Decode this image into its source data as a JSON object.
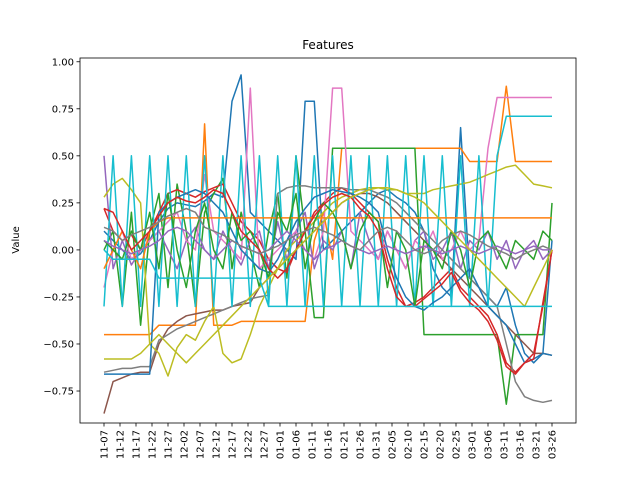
{
  "chart_data": {
    "type": "line",
    "title": "Features",
    "xlabel": "",
    "ylabel": "Value",
    "ylim": [
      -0.92,
      1.02
    ],
    "yticks": [
      -0.75,
      -0.5,
      -0.25,
      0.0,
      0.25,
      0.5,
      0.75,
      1.0
    ],
    "ytick_labels": [
      "−0.75",
      "−0.50",
      "−0.25",
      "0.00",
      "0.25",
      "0.50",
      "0.75",
      "1.00"
    ],
    "x_tick_labels": [
      "11-07",
      "11-12",
      "11-17",
      "11-22",
      "11-27",
      "12-02",
      "12-07",
      "12-12",
      "12-17",
      "12-22",
      "12-27",
      "01-01",
      "01-06",
      "01-11",
      "01-16",
      "01-21",
      "01-26",
      "01-31",
      "02-05",
      "02-10",
      "02-15",
      "02-20",
      "02-25",
      "03-01",
      "03-06",
      "03-11",
      "03-16",
      "03-21",
      "03-26"
    ],
    "grid": false,
    "series": [
      {
        "color": "#1f77b4",
        "values": [
          0.1,
          0.05,
          0.0,
          -0.05,
          -0.02,
          0.05,
          0.15,
          0.22,
          0.25,
          0.24,
          0.23,
          0.26,
          0.3,
          0.28,
          0.79,
          0.93,
          0.2,
          0.15,
          0.1,
          0.05,
          0.0,
          -0.05,
          0.79,
          0.79,
          0.0,
          0.05,
          0.1,
          0.15,
          0.2,
          0.25,
          0.3,
          0.32,
          0.28,
          0.25,
          0.2,
          0.1,
          -0.1,
          -0.2,
          -0.25,
          0.65,
          -0.15,
          -0.2,
          -0.25,
          -0.3,
          -0.2,
          -0.4,
          -0.55,
          -0.6,
          -0.55,
          0.05
        ]
      },
      {
        "color": "#ff7f0e",
        "values": [
          -0.45,
          -0.45,
          -0.45,
          -0.45,
          -0.45,
          -0.45,
          -0.4,
          -0.4,
          -0.4,
          -0.4,
          -0.4,
          0.67,
          -0.4,
          -0.4,
          -0.4,
          -0.38,
          -0.38,
          -0.38,
          -0.38,
          -0.38,
          -0.38,
          -0.38,
          -0.38,
          0.05,
          0.2,
          -0.05,
          0.54,
          0.54,
          0.54,
          0.54,
          0.54,
          0.54,
          0.54,
          0.54,
          0.54,
          0.54,
          0.54,
          0.54,
          0.54,
          0.54,
          0.47,
          0.47,
          0.47,
          0.47,
          0.87,
          0.47,
          0.47,
          0.47,
          0.47,
          0.47
        ]
      },
      {
        "color": "#2ca02c",
        "values": [
          0.0,
          0.1,
          -0.3,
          0.2,
          -0.4,
          0.1,
          0.3,
          -0.2,
          0.35,
          0.1,
          -0.3,
          0.2,
          0.3,
          0.38,
          -0.1,
          0.2,
          0.0,
          -0.2,
          0.1,
          0.3,
          -0.15,
          0.5,
          0.1,
          -0.36,
          -0.36,
          0.54,
          0.54,
          0.54,
          0.54,
          0.54,
          0.54,
          0.54,
          0.54,
          0.54,
          0.54,
          -0.45,
          -0.45,
          -0.45,
          -0.45,
          -0.45,
          -0.45,
          -0.45,
          -0.45,
          -0.45,
          -0.82,
          -0.45,
          -0.45,
          -0.45,
          -0.45,
          0.25
        ]
      },
      {
        "color": "#d62728",
        "values": [
          0.22,
          0.1,
          0.05,
          0.08,
          0.0,
          0.1,
          0.2,
          0.3,
          0.32,
          0.3,
          0.28,
          0.31,
          0.33,
          0.35,
          0.25,
          0.15,
          0.1,
          0.05,
          -0.05,
          -0.1,
          -0.12,
          0.0,
          0.1,
          0.2,
          0.25,
          0.3,
          0.33,
          0.3,
          0.25,
          0.2,
          0.15,
          -0.05,
          -0.2,
          -0.3,
          -0.28,
          -0.25,
          -0.2,
          -0.15,
          -0.1,
          -0.2,
          -0.25,
          -0.3,
          -0.35,
          -0.45,
          -0.6,
          -0.65,
          -0.6,
          -0.55,
          -0.3,
          0.0
        ]
      },
      {
        "color": "#9467bd",
        "values": [
          0.5,
          -0.1,
          0.05,
          -0.08,
          0.0,
          0.05,
          0.1,
          0.0,
          -0.1,
          0.05,
          0.12,
          0.0,
          -0.05,
          0.1,
          0.0,
          -0.08,
          0.05,
          0.1,
          -0.1,
          0.15,
          -0.05,
          0.1,
          0.2,
          -0.1,
          0.05,
          0.0,
          0.1,
          -0.1,
          0.2,
          0.05,
          -0.05,
          0.1,
          0.0,
          -0.1,
          0.05,
          0.1,
          -0.05,
          0.0,
          0.1,
          -0.1,
          0.05,
          0.0,
          0.1,
          -0.05,
          0.05,
          -0.1,
          0.0,
          0.05,
          -0.05,
          0.0
        ]
      },
      {
        "color": "#8c564b",
        "values": [
          -0.87,
          -0.7,
          -0.68,
          -0.66,
          -0.65,
          -0.65,
          -0.5,
          -0.42,
          -0.38,
          -0.35,
          -0.34,
          -0.33,
          -0.32,
          -0.32,
          -0.3,
          -0.29,
          -0.28,
          -0.2,
          -0.15,
          -0.1,
          -0.05,
          0.0,
          0.05,
          0.1,
          0.15,
          0.2,
          0.25,
          0.28,
          0.3,
          0.3,
          0.28,
          0.25,
          0.2,
          0.15,
          0.1,
          0.05,
          0.0,
          -0.05,
          -0.1,
          -0.15,
          -0.2,
          -0.25,
          -0.3,
          -0.35,
          -0.4,
          -0.45,
          -0.5,
          -0.55,
          -0.55,
          -0.56
        ]
      },
      {
        "color": "#e377c2",
        "values": [
          -0.2,
          0.0,
          0.1,
          -0.05,
          0.0,
          0.05,
          0.1,
          0.15,
          0.2,
          0.05,
          0.0,
          0.4,
          0.1,
          0.05,
          0.0,
          -0.05,
          0.86,
          -0.1,
          -0.05,
          0.0,
          0.05,
          0.1,
          0.0,
          -0.05,
          0.1,
          0.86,
          0.86,
          0.1,
          0.05,
          0.0,
          -0.05,
          0.1,
          0.0,
          -0.1,
          0.05,
          0.0,
          0.1,
          -0.05,
          0.0,
          0.1,
          0.0,
          0.05,
          0.54,
          0.81,
          0.81,
          0.81,
          0.81,
          0.81,
          0.81,
          0.81
        ]
      },
      {
        "color": "#7f7f7f",
        "values": [
          -0.65,
          -0.64,
          -0.63,
          -0.63,
          -0.62,
          -0.62,
          -0.48,
          -0.45,
          -0.42,
          -0.4,
          -0.38,
          -0.36,
          -0.34,
          -0.32,
          -0.3,
          -0.28,
          -0.26,
          -0.25,
          -0.24,
          0.3,
          0.33,
          0.34,
          0.34,
          0.33,
          0.33,
          0.33,
          0.33,
          0.32,
          0.32,
          0.32,
          0.3,
          0.28,
          0.25,
          0.2,
          0.15,
          0.1,
          0.05,
          0.0,
          -0.05,
          -0.1,
          -0.15,
          -0.2,
          -0.25,
          -0.3,
          -0.5,
          -0.7,
          -0.78,
          -0.8,
          -0.81,
          -0.8
        ]
      },
      {
        "color": "#bcbd22",
        "values": [
          0.28,
          0.35,
          0.38,
          0.32,
          0.25,
          -0.5,
          -0.55,
          -0.67,
          -0.52,
          -0.45,
          -0.48,
          -0.38,
          -0.3,
          -0.55,
          -0.6,
          -0.58,
          -0.45,
          -0.3,
          -0.2,
          -0.1,
          0.0,
          0.05,
          0.1,
          0.15,
          0.2,
          0.25,
          0.28,
          0.3,
          0.32,
          0.33,
          0.33,
          0.32,
          0.32,
          0.3,
          0.3,
          0.3,
          0.32,
          0.33,
          0.34,
          0.35,
          0.36,
          0.38,
          0.4,
          0.42,
          0.44,
          0.45,
          0.4,
          0.35,
          0.34,
          0.33
        ]
      },
      {
        "color": "#17becf",
        "values": [
          -0.3,
          0.5,
          -0.3,
          0.5,
          -0.3,
          0.5,
          -0.3,
          0.5,
          -0.3,
          0.5,
          -0.3,
          0.5,
          -0.3,
          0.5,
          -0.3,
          0.5,
          -0.3,
          0.5,
          -0.3,
          0.5,
          -0.3,
          0.5,
          -0.3,
          0.5,
          -0.3,
          0.5,
          -0.3,
          0.5,
          -0.3,
          0.5,
          -0.3,
          0.5,
          -0.3,
          0.5,
          -0.3,
          0.5,
          -0.3,
          0.5,
          -0.3,
          0.5,
          -0.3,
          0.5,
          -0.3,
          0.5,
          0.71,
          0.71,
          0.71,
          0.71,
          0.71,
          0.71
        ]
      },
      {
        "color": "#1f77b4",
        "values": [
          -0.66,
          -0.66,
          -0.66,
          -0.66,
          -0.66,
          -0.66,
          0.2,
          0.25,
          0.28,
          0.3,
          0.32,
          0.3,
          0.25,
          0.2,
          0.1,
          0.0,
          -0.05,
          -0.1,
          -0.12,
          -0.05,
          0.05,
          0.15,
          0.22,
          0.28,
          0.3,
          0.32,
          0.31,
          0.3,
          0.28,
          0.25,
          0.2,
          0.0,
          -0.15,
          -0.25,
          -0.3,
          -0.32,
          -0.28,
          -0.25,
          -0.2,
          -0.15,
          -0.1,
          -0.2,
          -0.3,
          -0.35,
          -0.4,
          -0.5,
          -0.6,
          -0.58,
          -0.55,
          -0.56
        ]
      },
      {
        "color": "#ff7f0e",
        "values": [
          -0.1,
          0.0,
          0.1,
          0.0,
          -0.1,
          0.1,
          0.15,
          0.17,
          0.17,
          0.17,
          0.17,
          0.17,
          0.17,
          0.17,
          0.17,
          0.17,
          0.17,
          0.17,
          0.17,
          0.17,
          0.17,
          0.17,
          0.17,
          0.17,
          0.17,
          0.17,
          0.17,
          0.17,
          0.17,
          0.17,
          0.17,
          0.17,
          0.17,
          0.17,
          0.17,
          0.17,
          0.17,
          0.17,
          0.17,
          0.17,
          0.17,
          0.17,
          0.17,
          0.17,
          0.17,
          0.17,
          0.17,
          0.17,
          0.17,
          0.17
        ]
      },
      {
        "color": "#2ca02c",
        "values": [
          0.05,
          0.0,
          -0.05,
          0.1,
          0.0,
          0.2,
          -0.1,
          0.3,
          0.0,
          -0.2,
          0.1,
          0.25,
          0.0,
          -0.1,
          0.2,
          0.05,
          0.1,
          0.0,
          -0.15,
          0.2,
          0.1,
          0.3,
          -0.1,
          0.15,
          0.25,
          0.2,
          0.1,
          -0.1,
          0.1,
          0.2,
          0.15,
          -0.2,
          0.1,
          0.0,
          -0.3,
          0.05,
          0.0,
          -0.1,
          0.1,
          0.0,
          -0.2,
          0.05,
          0.1,
          0.0,
          -0.1,
          0.05,
          0.0,
          -0.05,
          0.1,
          0.05
        ]
      },
      {
        "color": "#d62728",
        "values": [
          0.22,
          0.2,
          0.1,
          0.0,
          0.05,
          0.1,
          0.18,
          0.25,
          0.28,
          0.26,
          0.25,
          0.28,
          0.32,
          0.3,
          0.2,
          0.1,
          0.05,
          0.0,
          -0.1,
          -0.15,
          -0.1,
          0.0,
          0.1,
          0.18,
          0.24,
          0.28,
          0.3,
          0.28,
          0.22,
          0.18,
          0.1,
          -0.1,
          -0.25,
          -0.3,
          -0.3,
          -0.26,
          -0.22,
          -0.18,
          -0.12,
          -0.22,
          -0.28,
          -0.32,
          -0.38,
          -0.48,
          -0.62,
          -0.66,
          -0.6,
          -0.58,
          -0.28,
          0.0
        ]
      },
      {
        "color": "#9467bd",
        "values": [
          0.05,
          0.02,
          0.0,
          -0.02,
          0.0,
          0.02,
          0.05,
          0.1,
          0.12,
          0.1,
          0.05,
          0.0,
          -0.05,
          0.0,
          0.05,
          0.02,
          0.0,
          -0.02,
          0.0,
          0.05,
          0.1,
          0.05,
          0.0,
          -0.05,
          0.0,
          0.02,
          0.05,
          0.02,
          0.0,
          -0.02,
          0.0,
          0.02,
          0.0,
          -0.02,
          0.0,
          0.02,
          0.0,
          -0.02,
          0.0,
          0.02,
          0.0,
          -0.02,
          0.0,
          0.02,
          0.0,
          -0.02,
          0.0,
          0.02,
          0.0,
          0.0
        ]
      },
      {
        "color": "#7f7f7f",
        "values": [
          0.12,
          0.1,
          0.05,
          0.08,
          0.1,
          0.12,
          0.15,
          0.18,
          0.2,
          0.22,
          0.2,
          0.12,
          0.1,
          0.08,
          0.05,
          0.02,
          0.0,
          -0.02,
          0.0,
          0.02,
          0.05,
          0.08,
          0.1,
          0.12,
          0.1,
          0.08,
          0.05,
          0.02,
          0.0,
          0.05,
          0.1,
          0.12,
          0.1,
          0.05,
          0.0,
          -0.02,
          0.0,
          0.05,
          0.08,
          0.1,
          0.08,
          0.05,
          0.02,
          0.0,
          -0.02,
          -0.05,
          -0.02,
          0.0,
          0.02,
          0.0
        ]
      },
      {
        "color": "#bcbd22",
        "values": [
          -0.58,
          -0.58,
          -0.58,
          -0.58,
          -0.55,
          -0.5,
          -0.45,
          -0.5,
          -0.55,
          -0.6,
          -0.55,
          -0.5,
          -0.45,
          -0.4,
          -0.35,
          -0.3,
          -0.25,
          -0.2,
          -0.15,
          -0.1,
          -0.05,
          0.0,
          0.05,
          0.1,
          0.15,
          0.2,
          0.25,
          0.28,
          0.3,
          0.32,
          0.33,
          0.33,
          0.32,
          0.3,
          0.28,
          0.25,
          0.2,
          0.15,
          0.1,
          0.05,
          0.0,
          -0.05,
          -0.1,
          -0.15,
          -0.2,
          -0.25,
          -0.3,
          -0.2,
          -0.1,
          0.0
        ]
      },
      {
        "color": "#17becf",
        "values": [
          0.0,
          -0.05,
          -0.05,
          -0.05,
          -0.05,
          -0.05,
          -0.15,
          -0.15,
          -0.15,
          -0.15,
          -0.15,
          -0.15,
          -0.15,
          -0.15,
          -0.15,
          -0.15,
          -0.15,
          -0.15,
          -0.3,
          -0.3,
          -0.3,
          -0.3,
          -0.3,
          -0.3,
          -0.3,
          -0.3,
          -0.3,
          -0.3,
          -0.3,
          -0.3,
          -0.3,
          -0.3,
          -0.3,
          -0.3,
          -0.3,
          -0.3,
          -0.3,
          -0.3,
          -0.3,
          -0.3,
          -0.3,
          -0.3,
          -0.3,
          -0.3,
          -0.3,
          -0.3,
          -0.3,
          -0.3,
          -0.3,
          -0.3
        ]
      }
    ]
  }
}
